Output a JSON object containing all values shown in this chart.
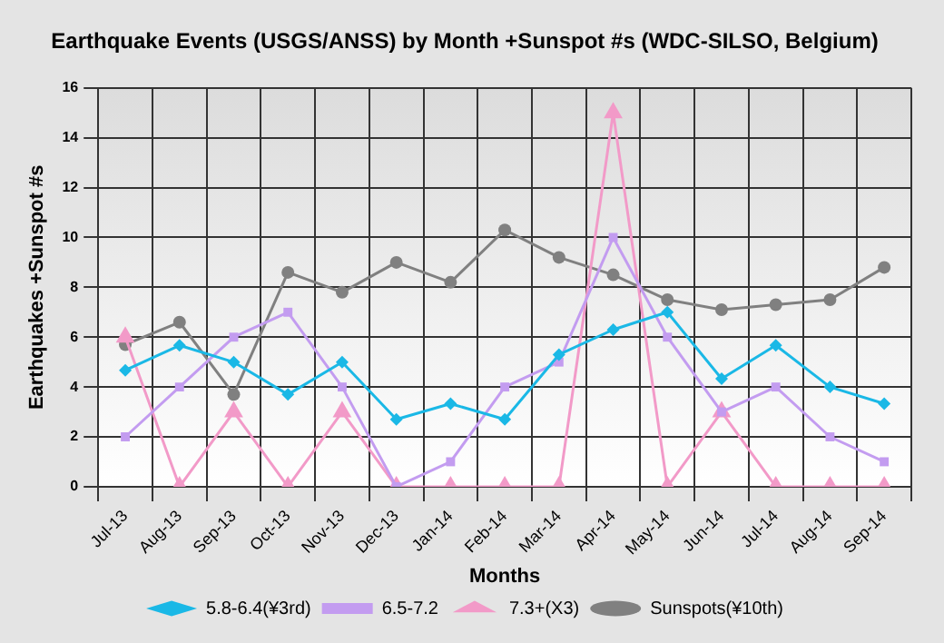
{
  "chart_data": {
    "type": "line",
    "title": "Earthquake Events (USGS/ANSS) by Month +Sunspot #s (WDC-SILSO, Belgium)",
    "xlabel": "Months",
    "ylabel": "Earthquakes +Sunspot #s",
    "categories": [
      "Jul-13",
      "Aug-13",
      "Sep-13",
      "Oct-13",
      "Nov-13",
      "Dec-13",
      "Jan-14",
      "Feb-14",
      "Mar-14",
      "Apr-14",
      "May-14",
      "Jun-14",
      "Jul-14",
      "Aug-14",
      "Sep-14"
    ],
    "series": [
      {
        "name": "5.8-6.4(¥3rd)",
        "color": "#1ab8e6",
        "marker": "diamond",
        "values": [
          4.67,
          5.67,
          5.0,
          3.7,
          5.0,
          2.7,
          3.33,
          2.7,
          5.3,
          6.3,
          7.0,
          4.33,
          5.67,
          4.0,
          3.33
        ]
      },
      {
        "name": "6.5-7.2",
        "color": "#c39cf0",
        "marker": "square",
        "values": [
          2,
          4,
          6,
          7,
          4,
          0,
          1,
          4,
          5,
          10,
          6,
          3,
          4,
          2,
          1
        ]
      },
      {
        "name": "7.3+(X3)",
        "color": "#f29ac8",
        "marker": "triangle",
        "values": [
          6,
          0,
          3,
          0,
          3,
          0,
          0,
          0,
          0,
          15,
          0,
          3,
          0,
          0,
          0
        ]
      },
      {
        "name": "Sunspots(¥10th)",
        "color": "#808080",
        "marker": "circle",
        "values": [
          5.7,
          6.6,
          3.7,
          8.6,
          7.8,
          9.0,
          8.2,
          10.3,
          9.2,
          8.5,
          7.5,
          7.1,
          7.3,
          7.5,
          8.8
        ]
      }
    ],
    "ylim": [
      0,
      16
    ],
    "yticks": [
      0,
      2,
      4,
      6,
      8,
      10,
      12,
      14,
      16
    ],
    "grid": true,
    "legend": "bottom"
  }
}
